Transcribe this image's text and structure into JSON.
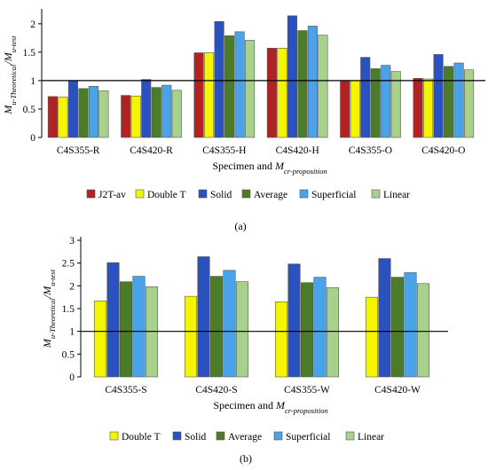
{
  "colors": {
    "J2T-av": "#b22222",
    "Double T": "#f5f500",
    "Solid": "#2a52be",
    "Average": "#4a7c2a",
    "Superficial": "#4aa3e8",
    "Linear": "#a9d18e",
    "reference_line": "#000000"
  },
  "chart_data": [
    {
      "type": "bar",
      "panel_label": "(a)",
      "categories": [
        "C4S355-R",
        "C4S420-R",
        "C4S355-H",
        "C4S420-H",
        "C4S355-O",
        "C4S420-O"
      ],
      "series": [
        {
          "name": "J2T-av",
          "values": [
            0.72,
            0.74,
            1.49,
            1.57,
            1.0,
            1.04
          ]
        },
        {
          "name": "Double T",
          "values": [
            0.71,
            0.73,
            1.49,
            1.57,
            1.0,
            1.03
          ]
        },
        {
          "name": "Solid",
          "values": [
            1.0,
            1.02,
            2.04,
            2.14,
            1.41,
            1.46
          ]
        },
        {
          "name": "Average",
          "values": [
            0.86,
            0.88,
            1.79,
            1.88,
            1.21,
            1.25
          ]
        },
        {
          "name": "Superficial",
          "values": [
            0.9,
            0.92,
            1.86,
            1.96,
            1.27,
            1.31
          ]
        },
        {
          "name": "Linear",
          "values": [
            0.82,
            0.83,
            1.71,
            1.8,
            1.16,
            1.19
          ]
        }
      ],
      "ylabel": {
        "main": "M",
        "sub_theo": "u-Theoretical",
        "sep": "/M",
        "sub_test": "u-test"
      },
      "xlabel": {
        "main": "Specimen and M",
        "sub": "cr-proposition"
      },
      "yticks": [
        "0",
        "0.5",
        "1",
        "1.5",
        "2"
      ],
      "ylim": [
        0,
        2.2
      ],
      "reference_line": 1.0,
      "grid": false,
      "legend_placement": "bottom"
    },
    {
      "type": "bar",
      "panel_label": "(b)",
      "categories": [
        "C4S355-S",
        "C4S420-S",
        "C4S355-W",
        "C4S420-W"
      ],
      "series": [
        {
          "name": "Double T",
          "values": [
            1.67,
            1.77,
            1.65,
            1.75
          ]
        },
        {
          "name": "Solid",
          "values": [
            2.51,
            2.64,
            2.48,
            2.6
          ]
        },
        {
          "name": "Average",
          "values": [
            2.09,
            2.21,
            2.07,
            2.19
          ]
        },
        {
          "name": "Superficial",
          "values": [
            2.21,
            2.34,
            2.19,
            2.29
          ]
        },
        {
          "name": "Linear",
          "values": [
            1.98,
            2.09,
            1.96,
            2.05
          ]
        }
      ],
      "ylabel": {
        "main": "M",
        "sub_theo": "u-Theoretical",
        "sep": "/M",
        "sub_test": "u-test"
      },
      "xlabel": {
        "main": "Specimen and M",
        "sub": "cr-proposition"
      },
      "yticks": [
        "0",
        "0.5",
        "1",
        "1.5",
        "2",
        "2.5",
        "3"
      ],
      "ylim": [
        0,
        3
      ],
      "reference_line": 1.0,
      "grid": false,
      "legend_placement": "bottom"
    }
  ]
}
